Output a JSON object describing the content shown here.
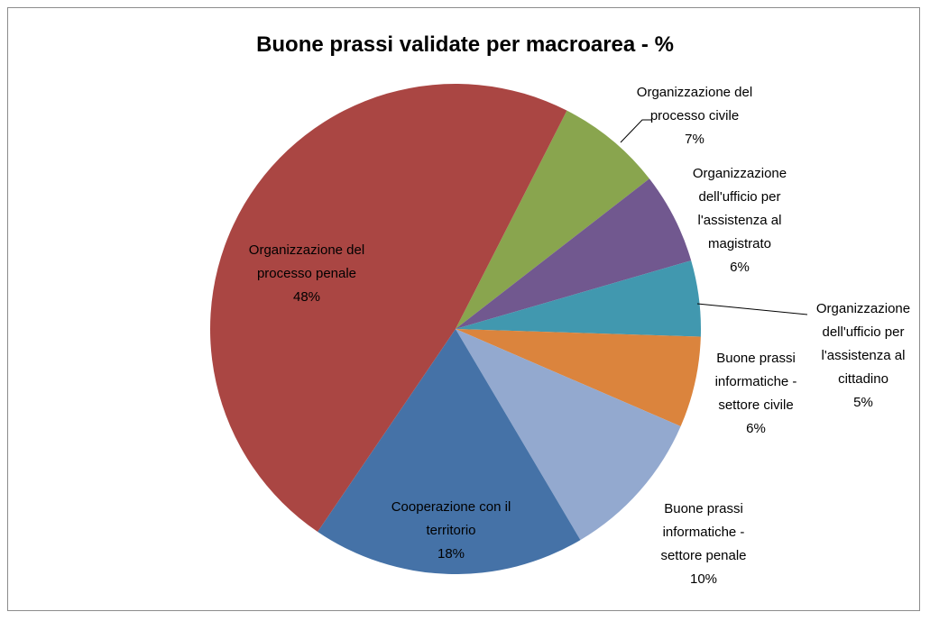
{
  "chart_data": {
    "type": "pie",
    "title": "Buone prassi validate per macroarea - %",
    "categories": [
      "Organizzazione del processo civile",
      "Organizzazione dell'ufficio per l'assistenza al magistrato",
      "Organizzazione dell'ufficio per l'assistenza al cittadino",
      "Buone prassi informatiche - settore civile",
      "Buone prassi informatiche - settore penale",
      "Cooperazione con il territorio",
      "Organizzazione del processo penale"
    ],
    "values": [
      7,
      6,
      5,
      6,
      10,
      18,
      48
    ],
    "value_labels": [
      "7%",
      "6%",
      "5%",
      "6%",
      "10%",
      "18%",
      "48%"
    ],
    "colors": [
      "#89a54e",
      "#71588f",
      "#4198af",
      "#db843d",
      "#93a9cf",
      "#4572a7",
      "#aa4643"
    ]
  }
}
